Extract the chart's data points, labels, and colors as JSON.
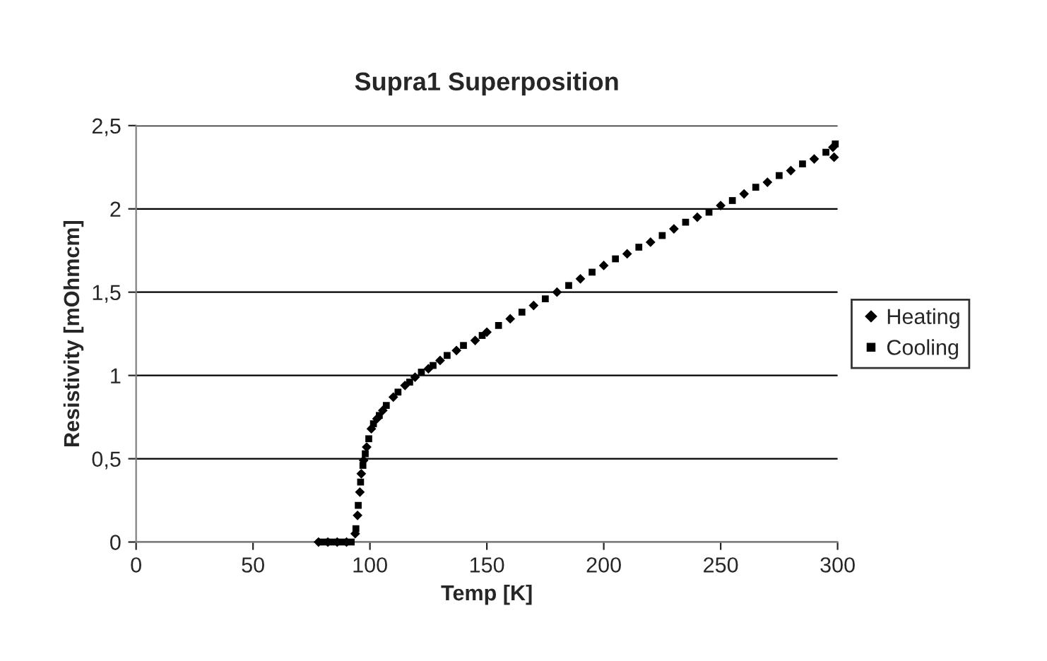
{
  "chart_data": {
    "type": "scatter",
    "title": "Supra1 Superposition",
    "xlabel": "Temp [K]",
    "ylabel": "Resistivity [mOhmcm]",
    "xlim": [
      0,
      300
    ],
    "xticks": [
      0,
      50,
      100,
      150,
      200,
      250,
      300
    ],
    "ylim": [
      0,
      2.5
    ],
    "yticks": [
      0,
      {
        "value": 0.5,
        "label": "0,5"
      },
      1,
      {
        "value": 1.5,
        "label": "1,5"
      },
      2,
      {
        "value": 2.5,
        "label": "2,5"
      }
    ],
    "grid": "y",
    "legend": "right",
    "series": [
      {
        "name": "Heating",
        "color": "#000000",
        "marker": "diamond",
        "x": [
          78,
          82,
          86,
          90,
          93.7,
          94.7,
          95.7,
          96.3,
          97.3,
          98.6,
          100.6,
          103,
          105.5,
          110,
          115,
          119.3,
          125,
          130,
          137,
          145,
          150,
          160,
          170,
          180,
          190,
          200,
          210,
          220,
          230,
          240,
          250,
          260,
          270,
          280,
          290,
          298,
          298.5
        ],
        "values": [
          0,
          0,
          0,
          0,
          0.05,
          0.16,
          0.3,
          0.41,
          0.49,
          0.57,
          0.68,
          0.74,
          0.79,
          0.87,
          0.94,
          0.99,
          1.04,
          1.09,
          1.15,
          1.21,
          1.26,
          1.34,
          1.42,
          1.5,
          1.58,
          1.66,
          1.73,
          1.8,
          1.88,
          1.95,
          2.02,
          2.09,
          2.16,
          2.23,
          2.3,
          2.37,
          2.31
        ]
      },
      {
        "name": "Cooling",
        "color": "#000000",
        "marker": "square",
        "x": [
          80,
          84,
          88,
          92,
          94,
          95,
          96,
          97,
          98,
          99.5,
          101.5,
          104,
          107,
          112,
          117,
          122,
          127,
          133,
          140,
          148,
          155,
          165,
          175,
          185,
          195,
          205,
          215,
          225,
          235,
          245,
          255,
          265,
          275,
          285,
          295,
          299
        ],
        "values": [
          0,
          0,
          0,
          0,
          0.08,
          0.22,
          0.36,
          0.46,
          0.53,
          0.62,
          0.71,
          0.76,
          0.82,
          0.9,
          0.96,
          1.02,
          1.06,
          1.12,
          1.18,
          1.24,
          1.3,
          1.38,
          1.46,
          1.54,
          1.62,
          1.7,
          1.77,
          1.84,
          1.92,
          1.98,
          2.05,
          2.13,
          2.2,
          2.27,
          2.34,
          2.39
        ]
      }
    ]
  }
}
